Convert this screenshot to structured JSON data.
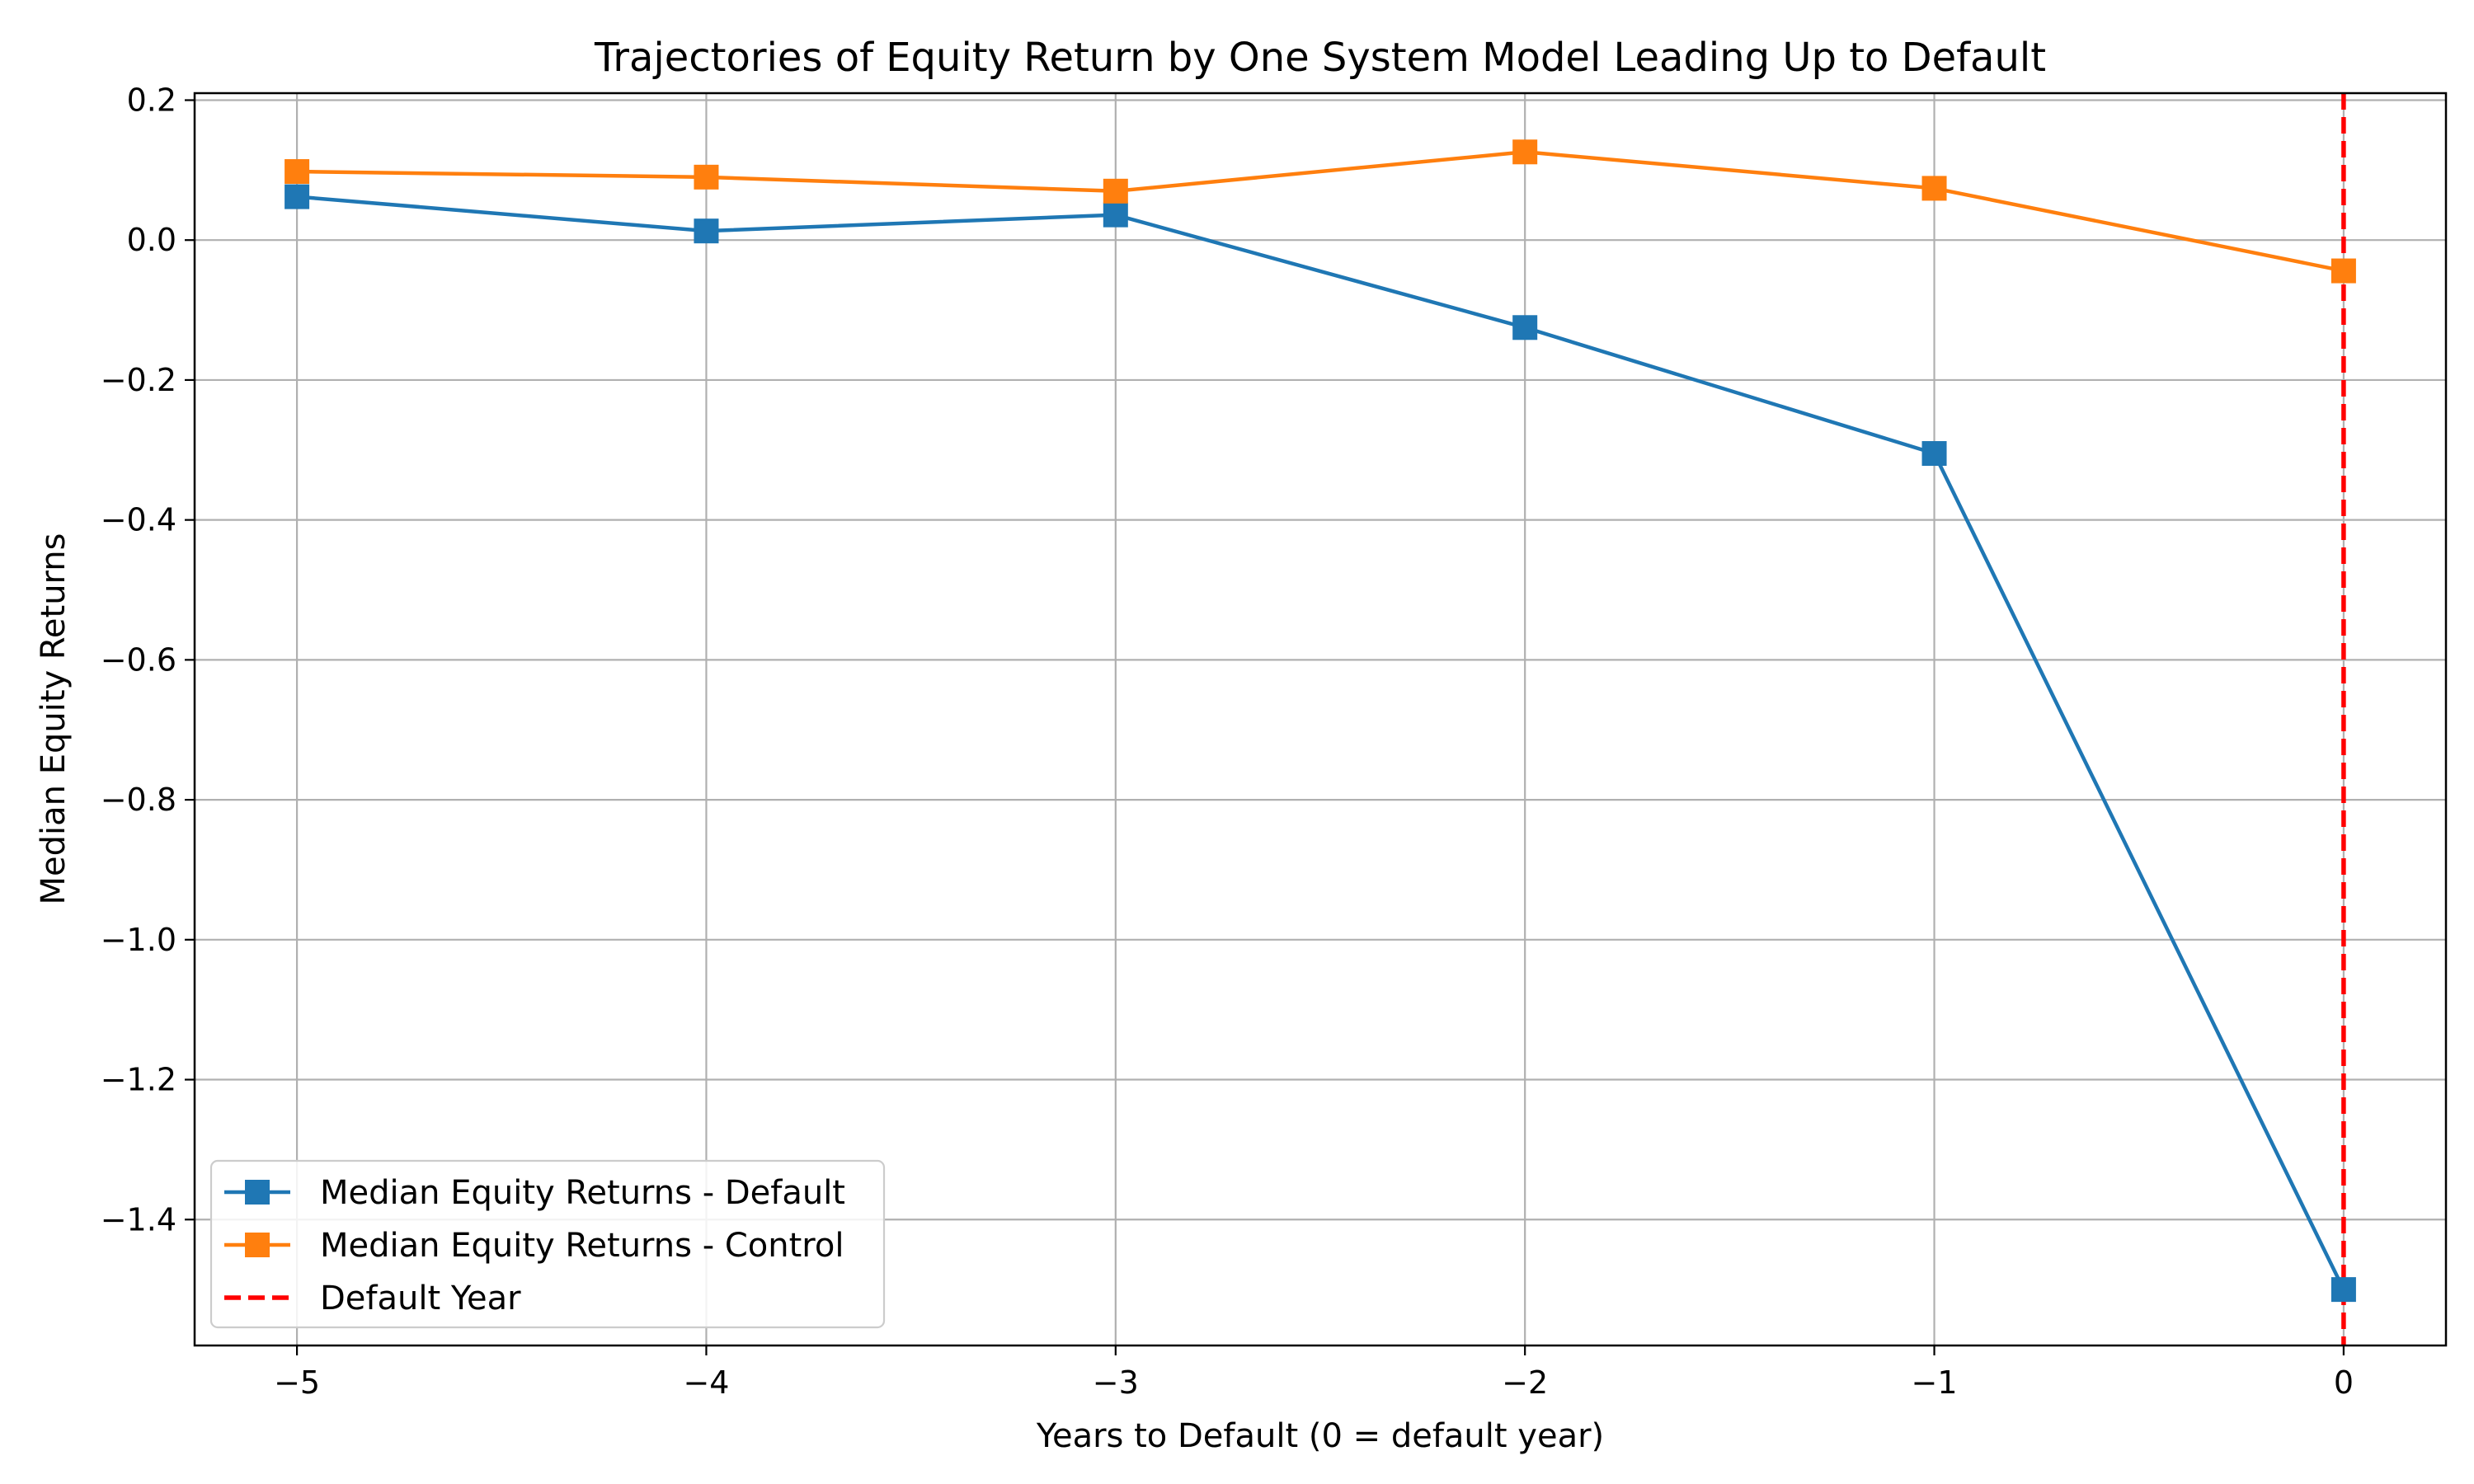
{
  "chart_data": {
    "type": "line",
    "title": "Trajectories of Equity Return by One System Model Leading Up to Default",
    "xlabel": "Years to Default (0 = default year)",
    "ylabel": "Median Equity Returns",
    "x": [
      -5,
      -4,
      -3,
      -2,
      -1,
      0
    ],
    "x_tick_labels": [
      "−5",
      "−4",
      "−3",
      "−2",
      "−1",
      "0"
    ],
    "y_ticks": [
      0.2,
      0.0,
      -0.2,
      -0.4,
      -0.6,
      -0.8,
      -1.0,
      -1.2,
      -1.4
    ],
    "y_tick_labels": [
      "0.2",
      "0.0",
      "−0.2",
      "−0.4",
      "−0.6",
      "−0.8",
      "−1.0",
      "−1.2",
      "−1.4"
    ],
    "xlim": [
      -5.25,
      0.25
    ],
    "ylim": [
      -1.58,
      0.21
    ],
    "grid": true,
    "legend_position": "lower-left",
    "series": [
      {
        "name": "Median Equity Returns - Default",
        "color": "#1f77b4",
        "marker": "square",
        "values": [
          0.062,
          0.013,
          0.036,
          -0.125,
          -0.305,
          -1.5
        ]
      },
      {
        "name": "Median Equity Returns - Control",
        "color": "#ff7f0e",
        "marker": "square",
        "values": [
          0.098,
          0.09,
          0.07,
          0.126,
          0.074,
          -0.044
        ]
      }
    ],
    "reference_lines": [
      {
        "name": "Default Year",
        "x": 0,
        "color": "#ff0000",
        "style": "dashed"
      }
    ]
  }
}
